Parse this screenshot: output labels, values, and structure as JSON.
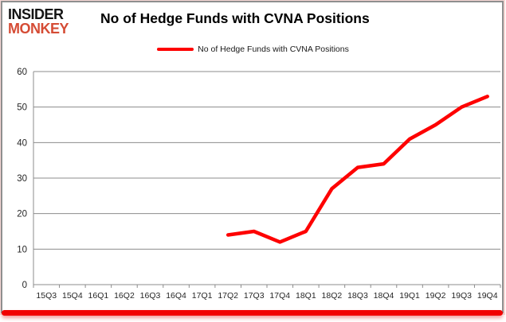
{
  "branding": {
    "logo_line1": "INSIDER",
    "logo_line2": "MONKEY",
    "logo_color1": "#141414",
    "logo_color2": "#d54c35"
  },
  "header": {
    "title": "No of Hedge Funds with CVNA Positions"
  },
  "legend": {
    "label": "No of Hedge Funds with CVNA Positions",
    "line_color": "#fe0000"
  },
  "chart_data": {
    "type": "line",
    "title": "No of Hedge Funds with CVNA Positions",
    "categories": [
      "15Q3",
      "15Q4",
      "16Q1",
      "16Q2",
      "16Q3",
      "16Q4",
      "17Q1",
      "17Q2",
      "17Q3",
      "17Q4",
      "18Q1",
      "18Q2",
      "18Q3",
      "18Q4",
      "19Q1",
      "19Q2",
      "19Q3",
      "19Q4"
    ],
    "series": [
      {
        "name": "No of Hedge Funds with CVNA Positions",
        "color": "#fe0000",
        "values": [
          null,
          null,
          null,
          null,
          null,
          null,
          null,
          14,
          15,
          12,
          15,
          27,
          33,
          34,
          41,
          45,
          50,
          53
        ]
      }
    ],
    "ylim": [
      0,
      60
    ],
    "ytick_interval": 10,
    "yticks": [
      0,
      10,
      20,
      30,
      40,
      50,
      60
    ],
    "grid": true,
    "legend_position": "top",
    "xlabel": "",
    "ylabel": ""
  },
  "colors": {
    "grid": "#8c8c8c",
    "tick_label": "#262626",
    "frame_bottom_bar": "#f10000"
  }
}
